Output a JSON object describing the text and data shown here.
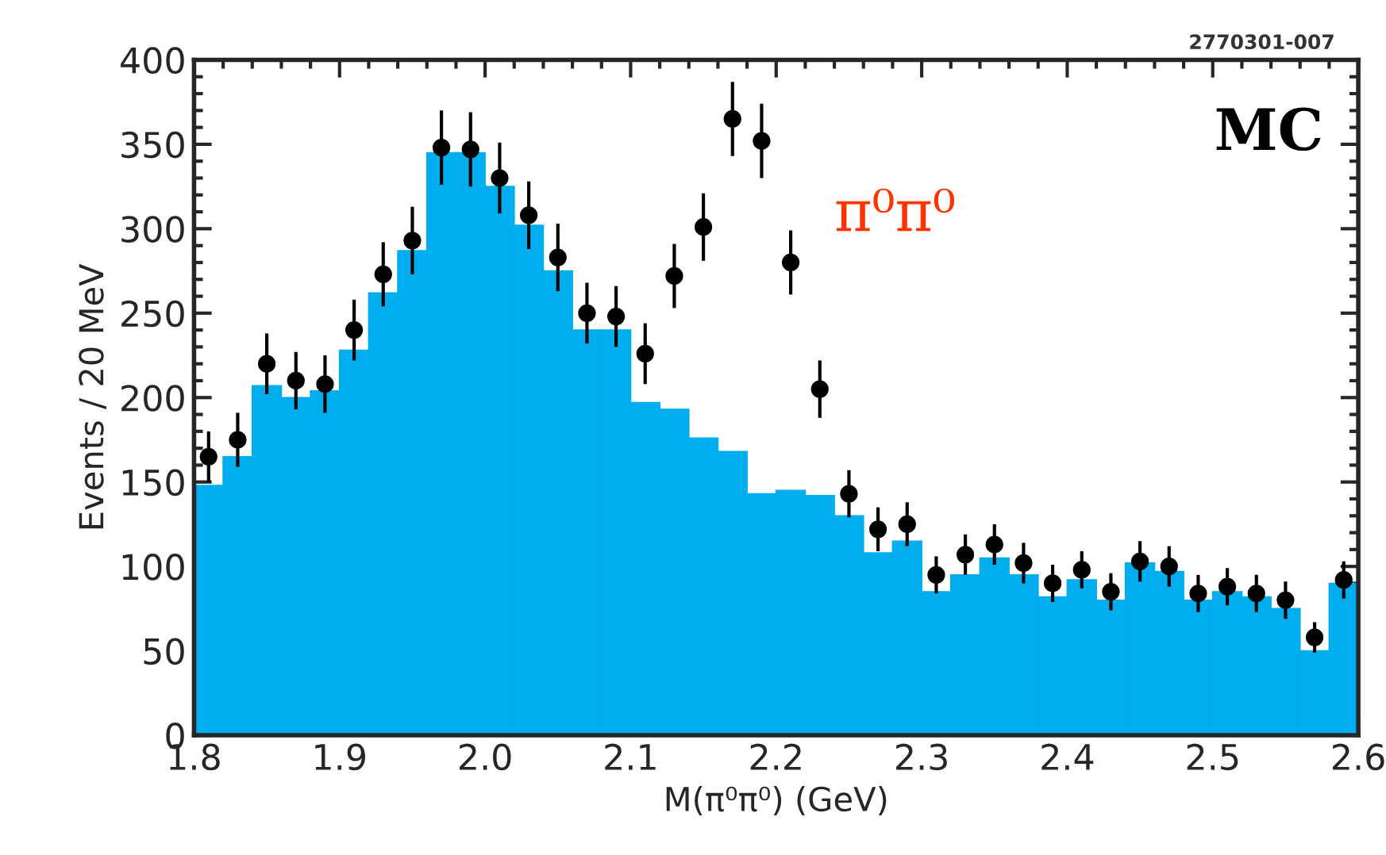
{
  "chart_data": {
    "type": "histogram",
    "xlabel": "M(π⁰π⁰) (GeV)",
    "ylabel": "Events / 20 MeV",
    "bins": [
      1.8,
      1.82,
      1.84,
      1.86,
      1.88,
      1.9,
      1.92,
      1.94,
      1.96,
      1.98,
      2.0,
      2.02,
      2.04,
      2.06,
      2.08,
      2.1,
      2.12,
      2.14,
      2.16,
      2.18,
      2.2,
      2.22,
      2.24,
      2.26,
      2.28,
      2.3,
      2.32,
      2.34,
      2.36,
      2.38,
      2.4,
      2.42,
      2.44,
      2.46,
      2.48,
      2.5,
      2.52,
      2.54,
      2.56,
      2.58,
      2.6
    ],
    "values": [
      148,
      165,
      207,
      200,
      204,
      228,
      262,
      287,
      345,
      345,
      325,
      302,
      275,
      240,
      240,
      197,
      193,
      176,
      168,
      143,
      145,
      142,
      130,
      108,
      115,
      85,
      95,
      105,
      95,
      82,
      92,
      80,
      102,
      97,
      80,
      85,
      82,
      75,
      50,
      90
    ],
    "color": "#00aeef",
    "series": [
      {
        "type": "scatter",
        "color": "#000000",
        "marker": "circle",
        "x": [
          1.81,
          1.83,
          1.85,
          1.87,
          1.89,
          1.91,
          1.93,
          1.95,
          1.97,
          1.99,
          2.01,
          2.03,
          2.05,
          2.07,
          2.09,
          2.11,
          2.13,
          2.15,
          2.17,
          2.19,
          2.21,
          2.23,
          2.25,
          2.27,
          2.29,
          2.31,
          2.33,
          2.35,
          2.37,
          2.39,
          2.41,
          2.43,
          2.45,
          2.47,
          2.49,
          2.51,
          2.53,
          2.55,
          2.57,
          2.59
        ],
        "values": [
          165,
          175,
          220,
          210,
          208,
          240,
          273,
          293,
          348,
          347,
          330,
          308,
          283,
          250,
          248,
          226,
          272,
          301,
          365,
          352,
          280,
          205,
          143,
          122,
          125,
          95,
          107,
          113,
          102,
          90,
          98,
          85,
          103,
          100,
          84,
          88,
          84,
          80,
          58,
          92
        ],
        "errors": [
          15,
          16,
          18,
          17,
          17,
          18,
          19,
          20,
          22,
          22,
          21,
          20,
          20,
          18,
          18,
          18,
          19,
          20,
          22,
          22,
          19,
          17,
          14,
          13,
          13,
          11,
          12,
          12,
          12,
          11,
          11,
          11,
          12,
          12,
          11,
          11,
          11,
          11,
          9,
          11
        ]
      }
    ],
    "xlim": [
      1.8,
      2.6
    ],
    "xticks": [
      1.8,
      1.9,
      {
        "value": 2.0,
        "label": "2.0"
      },
      2.1,
      2.2,
      2.3,
      2.4,
      2.5,
      2.6
    ],
    "ylim": [
      0,
      400
    ],
    "yticks": [
      0,
      50,
      100,
      150,
      200,
      250,
      300,
      350,
      400
    ],
    "grid": false,
    "legend": false,
    "annotations": [
      "2770301-007",
      "MC",
      "π⁰π⁰"
    ]
  }
}
